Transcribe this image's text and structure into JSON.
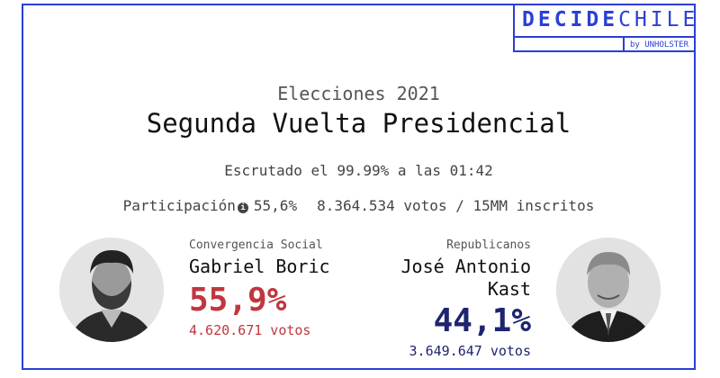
{
  "brand": {
    "word_bold": "DECIDE",
    "word_light": "CHILE",
    "tagline": "by UNHOLSTER",
    "color": "#2b3fd6"
  },
  "election": {
    "eyebrow": "Elecciones 2021",
    "title": "Segunda Vuelta Presidencial",
    "scrutiny": "Escrutado el 99.99% a las 01:42",
    "participation_label": "Participación",
    "participation_icon": "info-icon",
    "participation_pct": "55,6%",
    "votes_summary": "8.364.534 votos / 15MM inscritos"
  },
  "candidates": [
    {
      "party": "Convergencia Social",
      "name": "Gabriel Boric",
      "pct": "55,9%",
      "votes": "4.620.671 votos",
      "color": "#c0373f"
    },
    {
      "party": "Republicanos",
      "name_line1": "José Antonio",
      "name_line2": "Kast",
      "pct": "44,1%",
      "votes": "3.649.647 votos",
      "color": "#1e2470"
    }
  ]
}
